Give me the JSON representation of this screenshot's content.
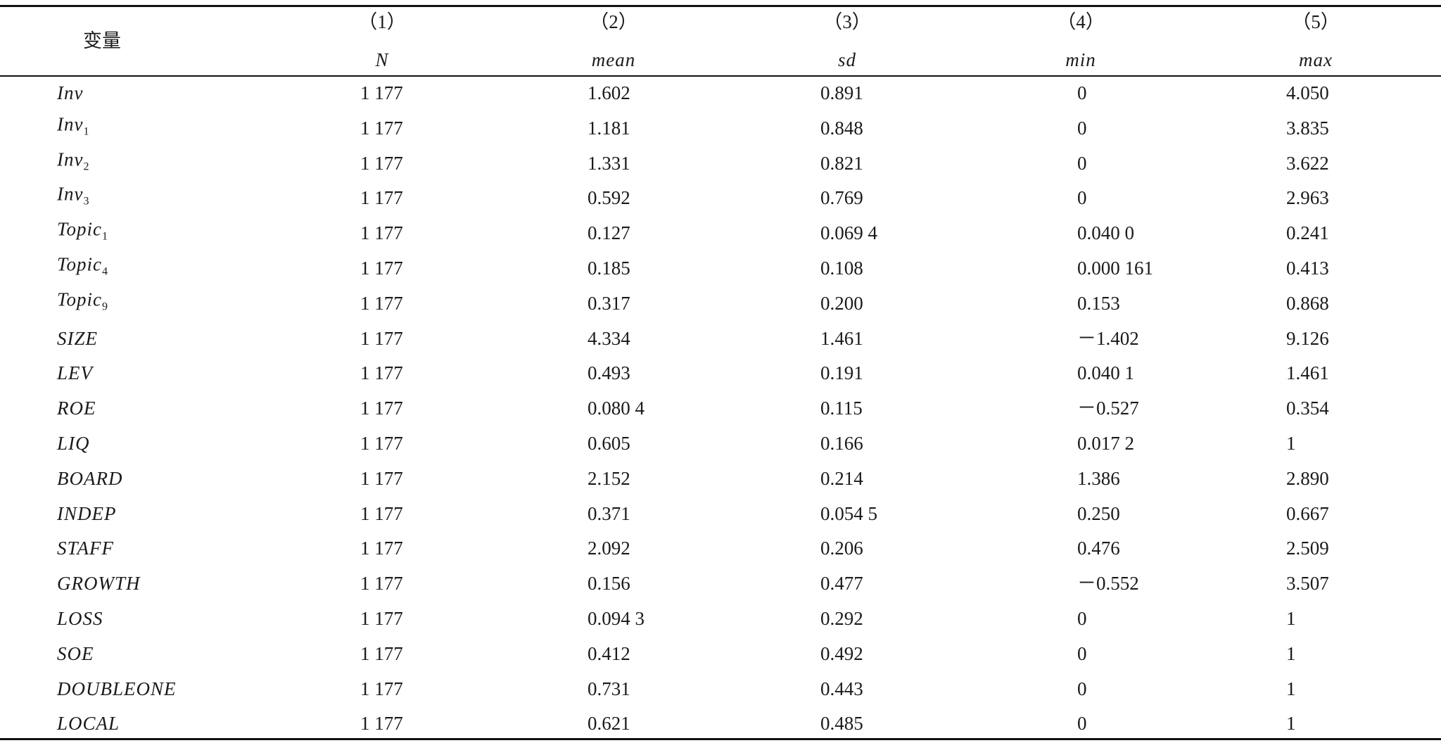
{
  "header": {
    "variable": "变量",
    "columns": [
      {
        "number": "（1）",
        "label": "N"
      },
      {
        "number": "（2）",
        "label": "mean"
      },
      {
        "number": "（3）",
        "label": "sd"
      },
      {
        "number": "（4）",
        "label": "min"
      },
      {
        "number": "（5）",
        "label": "max"
      }
    ]
  },
  "table": {
    "rows": [
      {
        "variable": "Inv",
        "values": [
          "1 177",
          "1.602",
          "0.891",
          "0",
          "4.050"
        ]
      },
      {
        "variable": "Inv",
        "subscript": "1",
        "values": [
          "1 177",
          "1.181",
          "0.848",
          "0",
          "3.835"
        ]
      },
      {
        "variable": "Inv",
        "subscript": "2",
        "values": [
          "1 177",
          "1.331",
          "0.821",
          "0",
          "3.622"
        ]
      },
      {
        "variable": "Inv",
        "subscript": "3",
        "values": [
          "1 177",
          "0.592",
          "0.769",
          "0",
          "2.963"
        ]
      },
      {
        "variable": "Topic",
        "subscript": "1",
        "values": [
          "1 177",
          "0.127",
          "0.069 4",
          "0.040 0",
          "0.241"
        ]
      },
      {
        "variable": "Topic",
        "subscript": "4",
        "values": [
          "1 177",
          "0.185",
          "0.108",
          "0.000 161",
          "0.413"
        ]
      },
      {
        "variable": "Topic",
        "subscript": "9",
        "values": [
          "1 177",
          "0.317",
          "0.200",
          "0.153",
          "0.868"
        ]
      },
      {
        "variable": "SIZE",
        "values": [
          "1 177",
          "4.334",
          "1.461",
          "－1.402",
          "9.126"
        ]
      },
      {
        "variable": "LEV",
        "values": [
          "1 177",
          "0.493",
          "0.191",
          "0.040 1",
          "1.461"
        ]
      },
      {
        "variable": "ROE",
        "values": [
          "1 177",
          "0.080 4",
          "0.115",
          "－0.527",
          "0.354"
        ]
      },
      {
        "variable": "LIQ",
        "values": [
          "1 177",
          "0.605",
          "0.166",
          "0.017 2",
          "1"
        ]
      },
      {
        "variable": "BOARD",
        "values": [
          "1 177",
          "2.152",
          "0.214",
          "1.386",
          "2.890"
        ]
      },
      {
        "variable": "INDEP",
        "values": [
          "1 177",
          "0.371",
          "0.054 5",
          "0.250",
          "0.667"
        ]
      },
      {
        "variable": "STAFF",
        "values": [
          "1 177",
          "2.092",
          "0.206",
          "0.476",
          "2.509"
        ]
      },
      {
        "variable": "GROWTH",
        "values": [
          "1 177",
          "0.156",
          "0.477",
          "－0.552",
          "3.507"
        ]
      },
      {
        "variable": "LOSS",
        "values": [
          "1 177",
          "0.094 3",
          "0.292",
          "0",
          "1"
        ]
      },
      {
        "variable": "SOE",
        "values": [
          "1 177",
          "0.412",
          "0.492",
          "0",
          "1"
        ]
      },
      {
        "variable": "DOUBLEONE",
        "values": [
          "1 177",
          "0.731",
          "0.443",
          "0",
          "1"
        ]
      },
      {
        "variable": "LOCAL",
        "values": [
          "1 177",
          "0.621",
          "0.485",
          "0",
          "1"
        ]
      }
    ]
  }
}
